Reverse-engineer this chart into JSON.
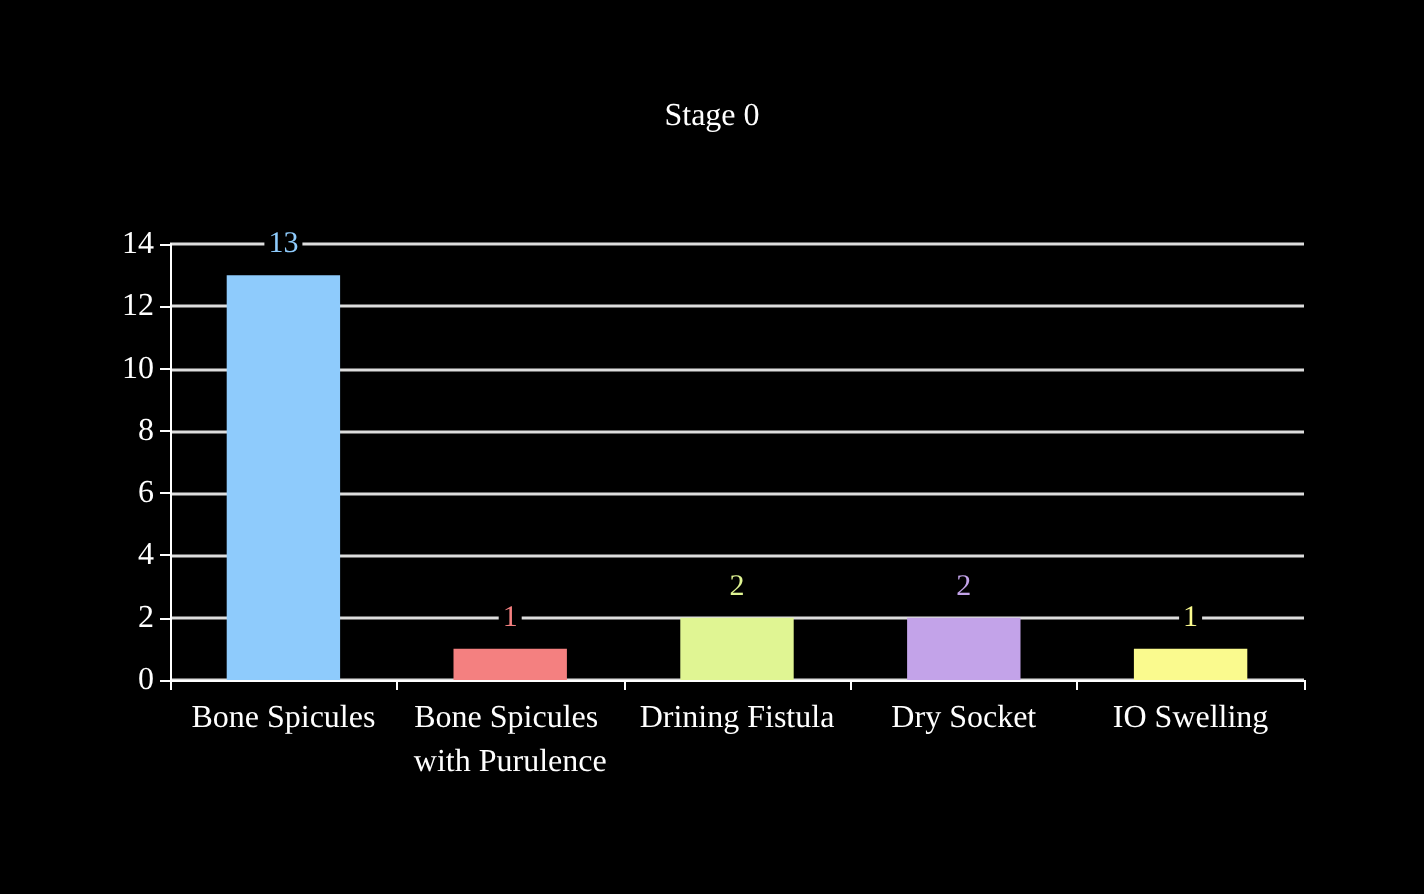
{
  "chart_data": {
    "type": "bar",
    "title": "Stage 0",
    "categories": [
      "Bone Spicules",
      "Bone Spicules with Purulence",
      "Drining Fistula",
      "Dry Socket",
      "IO Swelling"
    ],
    "values": [
      13,
      1,
      2,
      2,
      1
    ],
    "colors": [
      "#8ecbfc",
      "#f48080",
      "#e0f593",
      "#c3a3e9",
      "#fafa8e"
    ],
    "ylim": [
      0,
      14
    ],
    "yticks": [
      0,
      2,
      4,
      6,
      8,
      10,
      12,
      14
    ],
    "grid": "y",
    "data_labels": true
  }
}
